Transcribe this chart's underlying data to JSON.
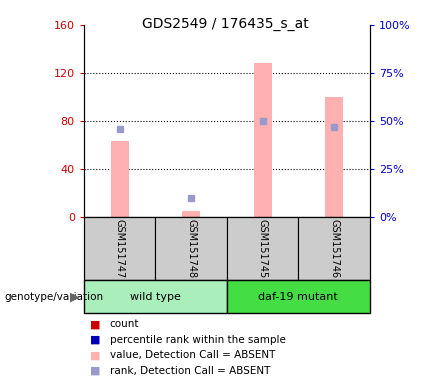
{
  "title": "GDS2549 / 176435_s_at",
  "samples": [
    "GSM151747",
    "GSM151748",
    "GSM151745",
    "GSM151746"
  ],
  "left_ylim": [
    0,
    160
  ],
  "right_ylim": [
    0,
    100
  ],
  "left_yticks": [
    0,
    40,
    80,
    120,
    160
  ],
  "right_yticks": [
    0,
    25,
    50,
    75,
    100
  ],
  "left_yticklabels": [
    "0",
    "40",
    "80",
    "120",
    "160"
  ],
  "right_yticklabels": [
    "0%",
    "25%",
    "50%",
    "75%",
    "100%"
  ],
  "pink_bars": [
    63,
    5,
    128,
    100
  ],
  "blue_dots_pct": [
    46,
    10,
    50,
    47
  ],
  "left_color": "#cc0000",
  "right_color": "#0000cc",
  "pink_color": "#ffb0b0",
  "blue_dot_color": "#9999cc",
  "sample_box_color": "#cccccc",
  "wt_color": "#aaeebb",
  "daf_color": "#44dd44",
  "legend_items": [
    {
      "color": "#cc0000",
      "label": "count"
    },
    {
      "color": "#0000bb",
      "label": "percentile rank within the sample"
    },
    {
      "color": "#ffb0b0",
      "label": "value, Detection Call = ABSENT"
    },
    {
      "color": "#9999cc",
      "label": "rank, Detection Call = ABSENT"
    }
  ],
  "genotype_label": "genotype/variation"
}
